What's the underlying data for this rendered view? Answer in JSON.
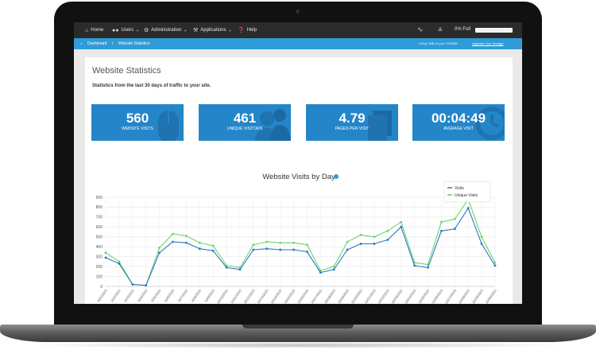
{
  "nav": {
    "items": [
      {
        "label": "Home",
        "icon": "home-icon",
        "caret": false
      },
      {
        "label": "Users",
        "icon": "users-icon",
        "caret": true
      },
      {
        "label": "Administration",
        "icon": "gear-icon",
        "caret": true
      },
      {
        "label": "Applications",
        "icon": "wrench-icon",
        "caret": true
      },
      {
        "label": "Help",
        "icon": "help-icon",
        "caret": false
      }
    ],
    "status_icons": [
      "pulse-icon",
      "warning-icon"
    ],
    "usage_label": "0% Full",
    "usage_percent": 0
  },
  "breadcrumb": {
    "items": [
      "Dashboard",
      "Website Statistics"
    ],
    "separator": "/",
    "storage_text": "Using 0MB of your 7000MB",
    "storage_link": "Upgrade Your Storage"
  },
  "page": {
    "title": "Website Statistics",
    "subtitle": "Statistics from the last 30 days of traffic to your site."
  },
  "stats": [
    {
      "value": "560",
      "label": "Website Visits",
      "icon": "mouse-icon"
    },
    {
      "value": "461",
      "label": "Unique Visitors",
      "icon": "people-icon"
    },
    {
      "value": "4.79",
      "label": "Pages per Visit",
      "icon": "pages-icon"
    },
    {
      "value": "00:04:49",
      "label": "Average Visit",
      "icon": "clock-icon"
    }
  ],
  "colors": {
    "accent": "#2f9bd7",
    "tile": "#2486c9",
    "visits": "#2b78c2",
    "unique": "#6dd36d",
    "topbar": "#2b2b2b"
  },
  "chart_data": {
    "type": "line",
    "title": "Website Visits by Day",
    "info_icon": "info-icon",
    "legend_position": "top-right",
    "grid": true,
    "ylim": [
      0,
      900
    ],
    "y_ticks": [
      0,
      100,
      200,
      300,
      400,
      500,
      600,
      700,
      800,
      900
    ],
    "x": [
      "10/1/2015",
      "10/2/2015",
      "10/3/2015",
      "10/4/2015",
      "10/5/2015",
      "10/6/2015",
      "10/7/2015",
      "10/8/2015",
      "10/9/2015",
      "10/10/2015",
      "10/11/2015",
      "10/12/2015",
      "10/13/2015",
      "10/14/2015",
      "10/15/2015",
      "10/16/2015",
      "10/17/2015",
      "10/18/2015",
      "10/19/2015",
      "10/20/2015",
      "10/21/2015",
      "10/22/2015",
      "10/23/2015",
      "10/24/2015",
      "10/25/2015",
      "10/26/2015",
      "10/27/2015",
      "10/28/2015",
      "10/29/2015",
      "10/30/2015"
    ],
    "series": [
      {
        "name": "Visits",
        "values": [
          290,
          230,
          20,
          10,
          340,
          450,
          440,
          380,
          360,
          190,
          170,
          370,
          380,
          370,
          370,
          350,
          140,
          170,
          370,
          430,
          430,
          470,
          600,
          210,
          190,
          560,
          580,
          790,
          430,
          210
        ]
      },
      {
        "name": "Unique Visits",
        "values": [
          340,
          250,
          20,
          10,
          390,
          530,
          510,
          440,
          410,
          210,
          190,
          420,
          450,
          440,
          440,
          420,
          160,
          200,
          450,
          520,
          500,
          560,
          650,
          240,
          220,
          650,
          680,
          880,
          500,
          240
        ]
      }
    ]
  }
}
